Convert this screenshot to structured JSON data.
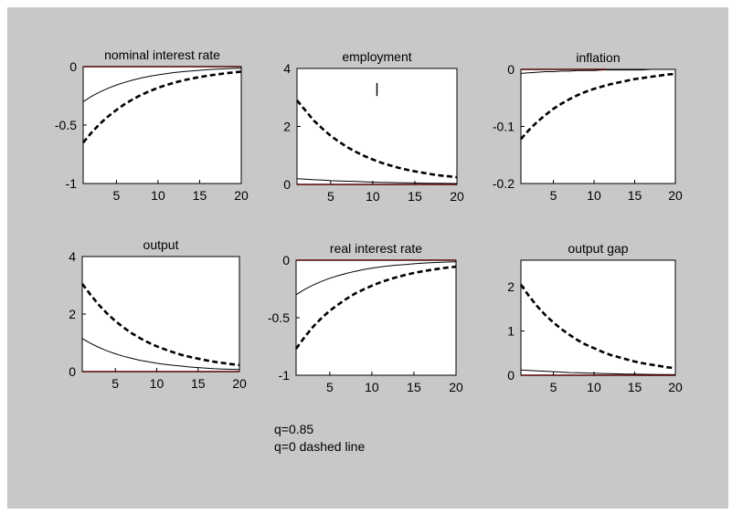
{
  "chart_data": [
    {
      "type": "line",
      "title": "nominal interest rate",
      "xlim": [
        1,
        20
      ],
      "ylim": [
        -1,
        0
      ],
      "xticks": [
        5,
        10,
        15,
        20
      ],
      "yticks": [
        -1,
        -0.5,
        0
      ],
      "ytick_labels": [
        "-1",
        "-0.5",
        "0"
      ],
      "x": [
        1,
        2,
        3,
        4,
        5,
        6,
        7,
        8,
        9,
        10,
        11,
        12,
        13,
        14,
        15,
        16,
        17,
        18,
        19,
        20
      ],
      "series": [
        {
          "style": "solid",
          "values": [
            -0.3,
            -0.255,
            -0.217,
            -0.185,
            -0.157,
            -0.134,
            -0.114,
            -0.097,
            -0.082,
            -0.07,
            -0.059,
            -0.05,
            -0.043,
            -0.037,
            -0.031,
            -0.026,
            -0.022,
            -0.019,
            -0.016,
            -0.014
          ]
        },
        {
          "style": "dashed",
          "values": [
            -0.65,
            -0.565,
            -0.49,
            -0.426,
            -0.37,
            -0.32,
            -0.278,
            -0.241,
            -0.209,
            -0.181,
            -0.157,
            -0.136,
            -0.118,
            -0.102,
            -0.089,
            -0.077,
            -0.067,
            -0.058,
            -0.05,
            -0.043
          ]
        },
        {
          "style": "red",
          "values": [
            0,
            0,
            0,
            0,
            0,
            0,
            0,
            0,
            0,
            0,
            0,
            0,
            0,
            0,
            0,
            0,
            0,
            0,
            0,
            0
          ]
        }
      ]
    },
    {
      "type": "line",
      "title": "employment",
      "xlim": [
        1,
        20
      ],
      "ylim": [
        0,
        4
      ],
      "xticks": [
        5,
        10,
        15,
        20
      ],
      "yticks": [
        0,
        2,
        4
      ],
      "ytick_labels": [
        "0",
        "2",
        "4"
      ],
      "x": [
        1,
        2,
        3,
        4,
        5,
        6,
        7,
        8,
        9,
        10,
        11,
        12,
        13,
        14,
        15,
        16,
        17,
        18,
        19,
        20
      ],
      "series": [
        {
          "style": "solid",
          "values": [
            0.2,
            0.18,
            0.16,
            0.15,
            0.13,
            0.12,
            0.11,
            0.1,
            0.09,
            0.08,
            0.07,
            0.065,
            0.06,
            0.055,
            0.05,
            0.045,
            0.04,
            0.037,
            0.034,
            0.03
          ]
        },
        {
          "style": "dashed",
          "values": [
            2.9,
            2.55,
            2.2,
            1.93,
            1.68,
            1.47,
            1.28,
            1.12,
            0.98,
            0.86,
            0.75,
            0.66,
            0.58,
            0.51,
            0.45,
            0.4,
            0.35,
            0.31,
            0.28,
            0.25
          ]
        },
        {
          "style": "red",
          "values": [
            0,
            0,
            0,
            0,
            0,
            0,
            0,
            0,
            0,
            0,
            0,
            0,
            0,
            0,
            0,
            0,
            0,
            0,
            0,
            0
          ]
        }
      ],
      "marker": {
        "x": 10.5,
        "y_from": 3.5,
        "y_to": 3.05
      }
    },
    {
      "type": "line",
      "title": "inflation",
      "xlim": [
        1,
        20
      ],
      "ylim": [
        -0.2,
        0
      ],
      "xticks": [
        5,
        10,
        15,
        20
      ],
      "yticks": [
        -0.2,
        -0.1,
        0
      ],
      "ytick_labels": [
        "-0.2",
        "-0.1",
        "0"
      ],
      "x": [
        1,
        2,
        3,
        4,
        5,
        6,
        7,
        8,
        9,
        10,
        11,
        12,
        13,
        14,
        15,
        16,
        17,
        18,
        19,
        20
      ],
      "series": [
        {
          "style": "solid",
          "values": [
            -0.007,
            -0.006,
            -0.005,
            -0.004,
            -0.004,
            -0.003,
            -0.003,
            -0.002,
            -0.002,
            -0.002,
            -0.001,
            -0.001,
            -0.001,
            -0.001,
            -0.001,
            -0.001,
            0,
            0,
            0,
            0
          ]
        },
        {
          "style": "dashed",
          "values": [
            -0.122,
            -0.106,
            -0.092,
            -0.08,
            -0.069,
            -0.06,
            -0.052,
            -0.045,
            -0.039,
            -0.034,
            -0.03,
            -0.026,
            -0.023,
            -0.02,
            -0.017,
            -0.015,
            -0.013,
            -0.011,
            -0.009,
            -0.008
          ]
        },
        {
          "style": "red",
          "x": [
            1,
            11.5
          ],
          "values": [
            0,
            0
          ]
        }
      ]
    },
    {
      "type": "line",
      "title": "output",
      "xlim": [
        1,
        20
      ],
      "ylim": [
        0,
        4
      ],
      "xticks": [
        5,
        10,
        15,
        20
      ],
      "yticks": [
        0,
        2,
        4
      ],
      "ytick_labels": [
        "0",
        "2",
        "4"
      ],
      "x": [
        1,
        2,
        3,
        4,
        5,
        6,
        7,
        8,
        9,
        10,
        11,
        12,
        13,
        14,
        15,
        16,
        17,
        18,
        19,
        20
      ],
      "series": [
        {
          "style": "solid",
          "values": [
            1.15,
            0.98,
            0.84,
            0.72,
            0.62,
            0.53,
            0.46,
            0.39,
            0.34,
            0.29,
            0.25,
            0.22,
            0.19,
            0.16,
            0.14,
            0.12,
            0.1,
            0.09,
            0.08,
            0.07
          ]
        },
        {
          "style": "dashed",
          "values": [
            3.05,
            2.67,
            2.32,
            2.02,
            1.76,
            1.53,
            1.33,
            1.16,
            1.01,
            0.88,
            0.77,
            0.67,
            0.58,
            0.51,
            0.45,
            0.39,
            0.34,
            0.3,
            0.26,
            0.23
          ]
        },
        {
          "style": "red",
          "values": [
            0,
            0,
            0,
            0,
            0,
            0,
            0,
            0,
            0,
            0,
            0,
            0,
            0,
            0,
            0,
            0,
            0,
            0,
            0,
            0
          ]
        }
      ]
    },
    {
      "type": "line",
      "title": "real interest rate",
      "xlim": [
        1,
        20
      ],
      "ylim": [
        -1,
        0
      ],
      "xticks": [
        5,
        10,
        15,
        20
      ],
      "yticks": [
        -1,
        -0.5,
        0
      ],
      "ytick_labels": [
        "-1",
        "-0.5",
        "0"
      ],
      "x": [
        1,
        2,
        3,
        4,
        5,
        6,
        7,
        8,
        9,
        10,
        11,
        12,
        13,
        14,
        15,
        16,
        17,
        18,
        19,
        20
      ],
      "series": [
        {
          "style": "solid",
          "values": [
            -0.3,
            -0.255,
            -0.217,
            -0.185,
            -0.157,
            -0.134,
            -0.114,
            -0.097,
            -0.082,
            -0.07,
            -0.059,
            -0.05,
            -0.043,
            -0.037,
            -0.031,
            -0.026,
            -0.022,
            -0.019,
            -0.016,
            -0.014
          ]
        },
        {
          "style": "dashed",
          "values": [
            -0.77,
            -0.67,
            -0.58,
            -0.505,
            -0.44,
            -0.385,
            -0.335,
            -0.29,
            -0.255,
            -0.222,
            -0.193,
            -0.168,
            -0.147,
            -0.128,
            -0.111,
            -0.097,
            -0.085,
            -0.074,
            -0.064,
            -0.056
          ]
        },
        {
          "style": "red",
          "values": [
            0,
            0,
            0,
            0,
            0,
            0,
            0,
            0,
            0,
            0,
            0,
            0,
            0,
            0,
            0,
            0,
            0,
            0,
            0,
            0
          ]
        }
      ]
    },
    {
      "type": "line",
      "title": "output gap",
      "xlim": [
        1,
        20
      ],
      "ylim": [
        0,
        2.6
      ],
      "xticks": [
        5,
        10,
        15,
        20
      ],
      "yticks": [
        0,
        1,
        2
      ],
      "ytick_labels": [
        "0",
        "1",
        "2"
      ],
      "x": [
        1,
        2,
        3,
        4,
        5,
        6,
        7,
        8,
        9,
        10,
        11,
        12,
        13,
        14,
        15,
        16,
        17,
        18,
        19,
        20
      ],
      "series": [
        {
          "style": "solid",
          "values": [
            0.12,
            0.11,
            0.1,
            0.09,
            0.08,
            0.07,
            0.06,
            0.055,
            0.05,
            0.045,
            0.04,
            0.035,
            0.03,
            0.027,
            0.024,
            0.021,
            0.019,
            0.017,
            0.015,
            0.013
          ]
        },
        {
          "style": "dashed",
          "values": [
            2.05,
            1.79,
            1.56,
            1.36,
            1.19,
            1.04,
            0.91,
            0.79,
            0.69,
            0.61,
            0.53,
            0.46,
            0.41,
            0.36,
            0.31,
            0.27,
            0.24,
            0.21,
            0.18,
            0.16
          ]
        },
        {
          "style": "red",
          "values": [
            0,
            0,
            0,
            0,
            0,
            0,
            0,
            0,
            0,
            0,
            0,
            0,
            0,
            0,
            0,
            0,
            0,
            0,
            0,
            0
          ]
        }
      ]
    }
  ],
  "notes": {
    "line1": "q=0.85",
    "line2": "q=0 dashed line"
  },
  "colors": {
    "background": "#c8c8c8",
    "plot_bg": "#ffffff",
    "axis": "#000000",
    "zero_line": "#ff0000"
  }
}
